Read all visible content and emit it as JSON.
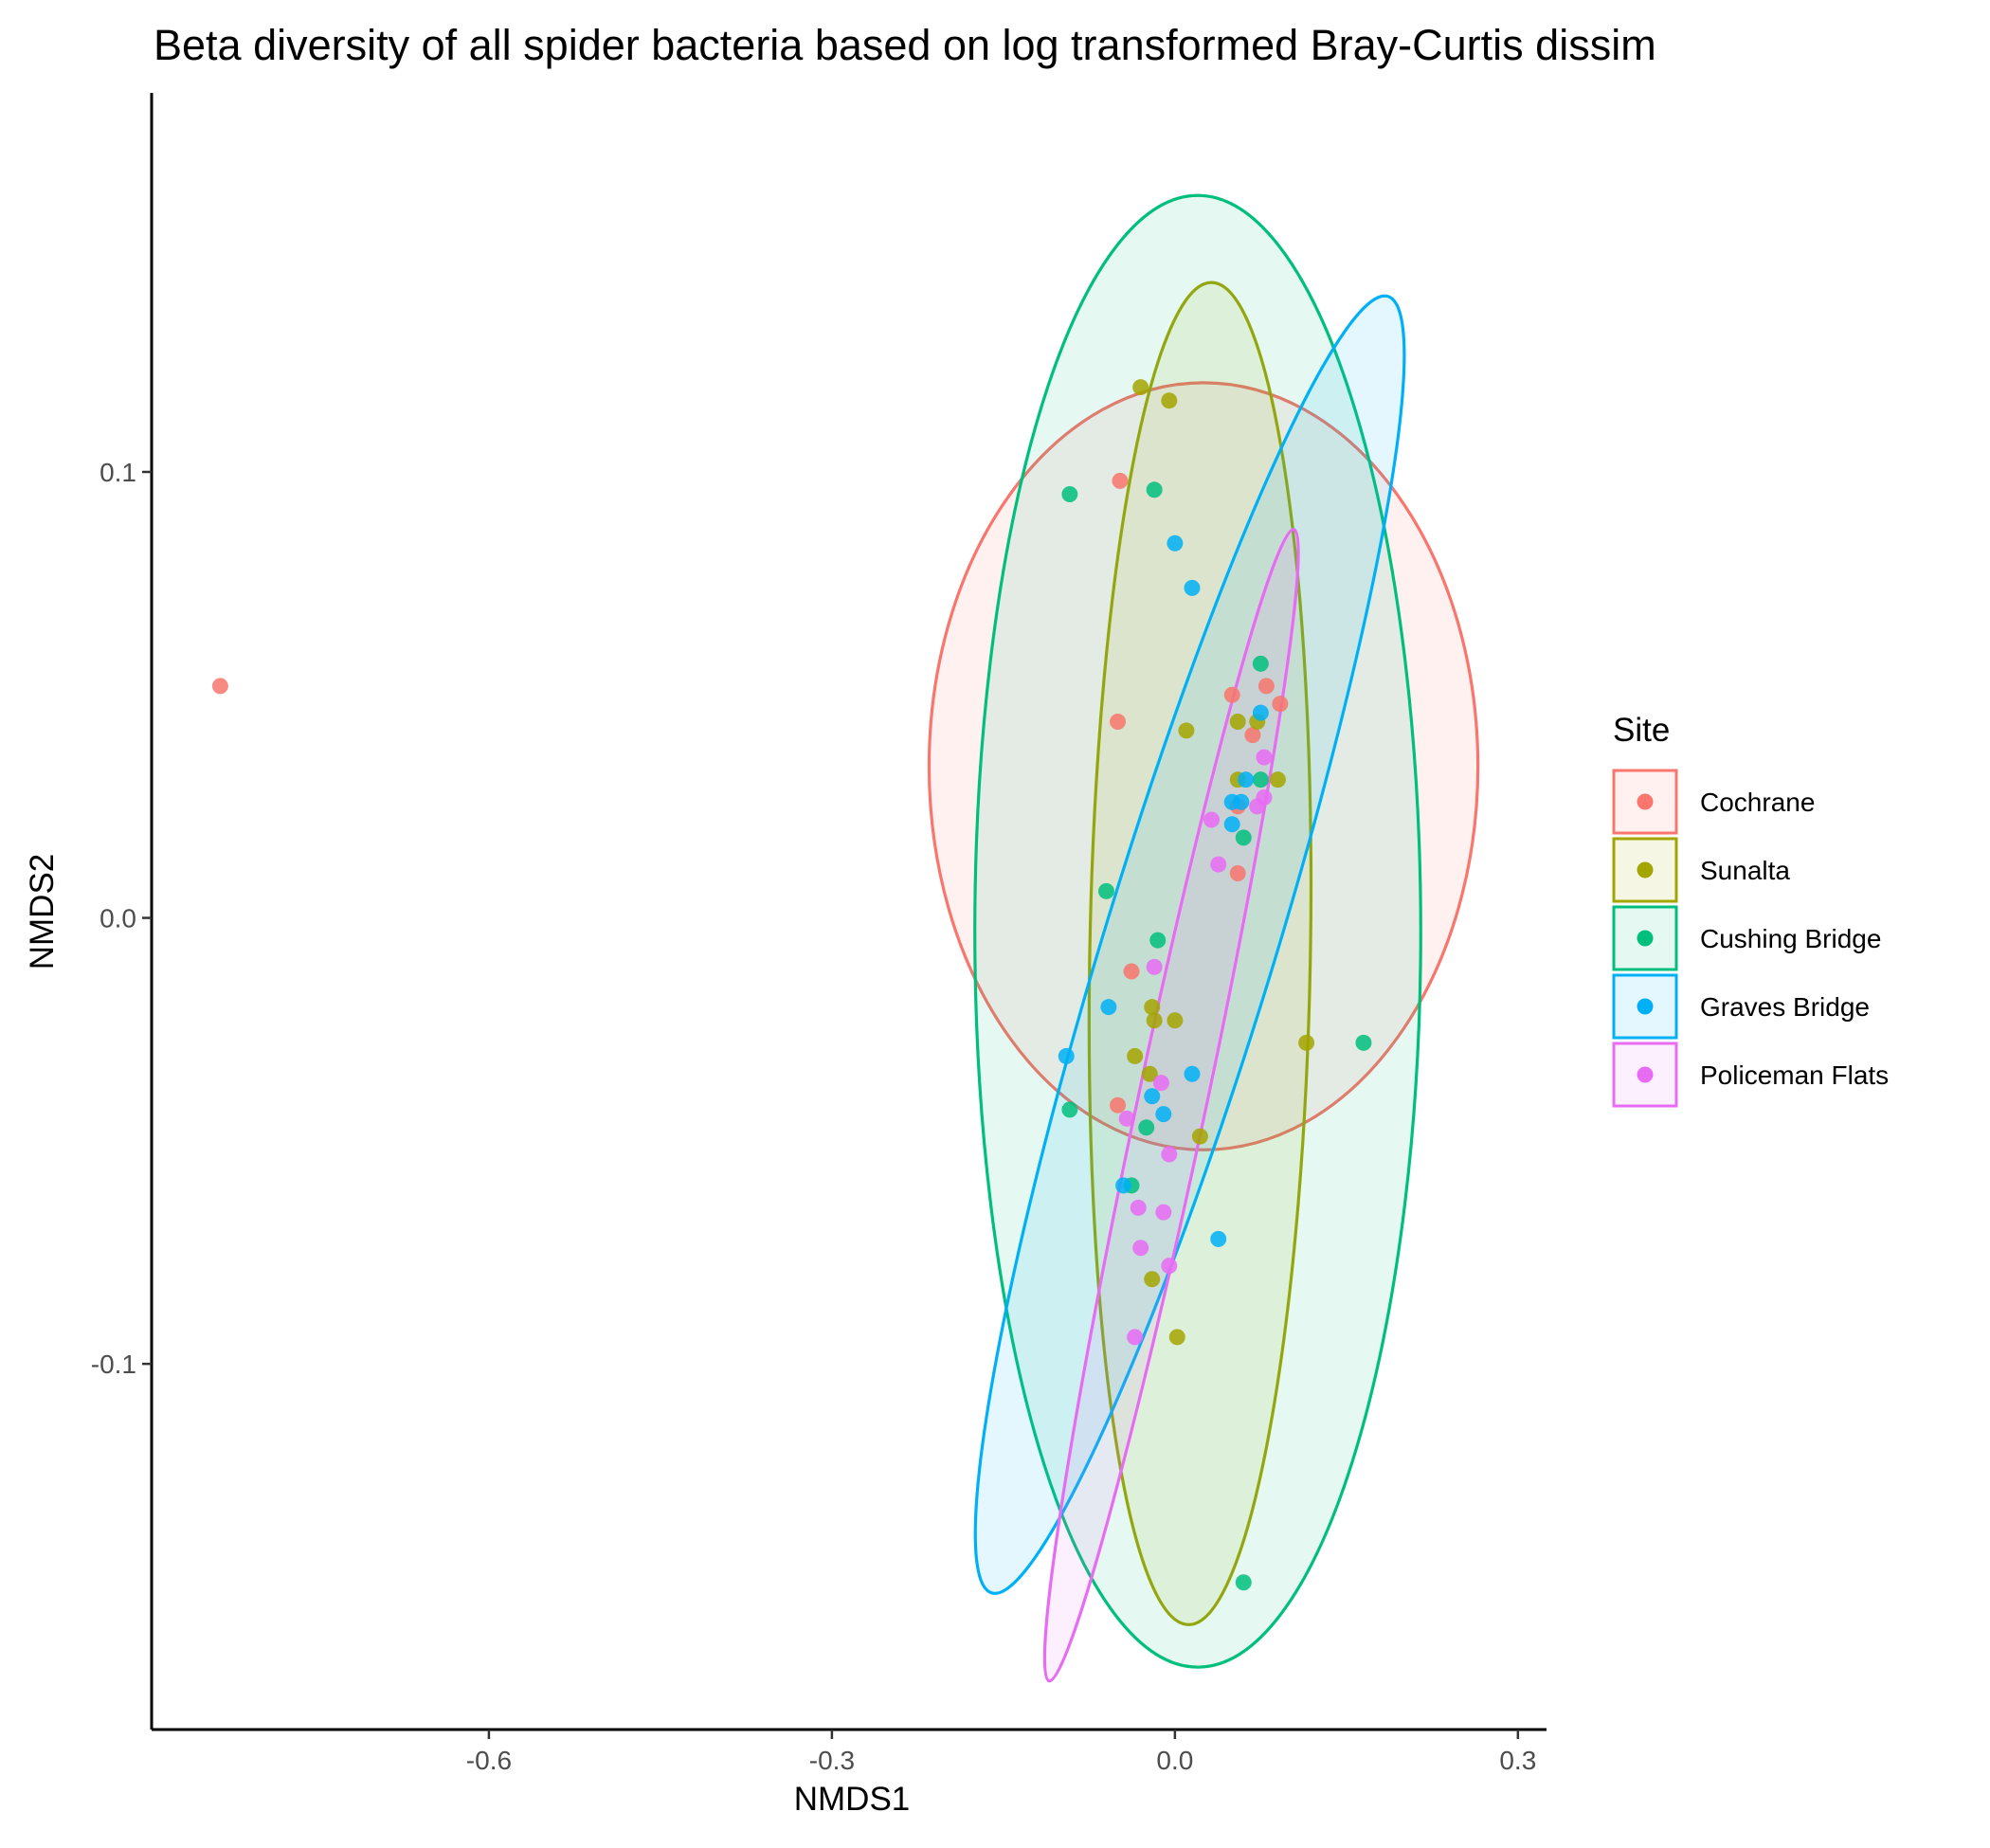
{
  "chart_data": {
    "type": "scatter",
    "title": "Beta diversity of all spider bacteria based on log transformed Bray-Curtis dissim",
    "xlabel": "NMDS1",
    "ylabel": "NMDS2",
    "xlim": [
      -0.895,
      0.325
    ],
    "ylim": [
      -0.182,
      0.185
    ],
    "xticks": [
      -0.6,
      -0.3,
      0.0,
      0.3
    ],
    "xtick_labels": [
      "-0.6",
      "-0.3",
      "0.0",
      "0.3"
    ],
    "yticks": [
      -0.1,
      0.0,
      0.1
    ],
    "ytick_labels": [
      "-0.1",
      "0.0",
      "0.1"
    ],
    "grid": false,
    "legend": {
      "title": "Site",
      "position": "right"
    },
    "series": [
      {
        "name": "Cochrane",
        "color": "#F8766D",
        "ellipse": {
          "center": [
            0.025,
            0.034
          ],
          "semi_axes": [
            0.24,
            0.086
          ],
          "angle": 0
        },
        "points": [
          [
            -0.835,
            0.052
          ],
          [
            -0.048,
            0.098
          ],
          [
            -0.05,
            0.044
          ],
          [
            0.05,
            0.05
          ],
          [
            0.08,
            0.052
          ],
          [
            0.092,
            0.048
          ],
          [
            0.068,
            0.041
          ],
          [
            0.055,
            0.025
          ],
          [
            0.055,
            0.01
          ],
          [
            -0.038,
            -0.012
          ],
          [
            -0.05,
            -0.042
          ]
        ]
      },
      {
        "name": "Sunalta",
        "color": "#A3A500",
        "ellipse": {
          "center": [
            0.022,
            -0.008
          ],
          "semi_axes": [
            0.0965,
            0.1505
          ],
          "angle": -1
        },
        "points": [
          [
            -0.03,
            0.119
          ],
          [
            -0.005,
            0.116
          ],
          [
            0.01,
            0.042
          ],
          [
            0.055,
            0.044
          ],
          [
            0.072,
            0.044
          ],
          [
            0.055,
            0.031
          ],
          [
            0.09,
            0.031
          ],
          [
            -0.02,
            -0.02
          ],
          [
            -0.018,
            -0.023
          ],
          [
            0.0,
            -0.023
          ],
          [
            -0.035,
            -0.031
          ],
          [
            -0.022,
            -0.035
          ],
          [
            0.115,
            -0.028
          ],
          [
            0.022,
            -0.049
          ],
          [
            -0.02,
            -0.081
          ],
          [
            0.002,
            -0.094
          ]
        ]
      },
      {
        "name": "Cushing Bridge",
        "color": "#00BF7D",
        "ellipse": {
          "center": [
            0.02,
            -0.003
          ],
          "semi_axes": [
            0.195,
            0.165
          ],
          "angle": 0
        },
        "points": [
          [
            -0.092,
            0.095
          ],
          [
            -0.018,
            0.096
          ],
          [
            0.075,
            0.057
          ],
          [
            0.075,
            0.031
          ],
          [
            0.06,
            0.018
          ],
          [
            -0.06,
            0.006
          ],
          [
            -0.015,
            -0.005
          ],
          [
            0.165,
            -0.028
          ],
          [
            -0.092,
            -0.043
          ],
          [
            -0.025,
            -0.047
          ],
          [
            -0.038,
            -0.06
          ],
          [
            0.06,
            -0.149
          ]
        ]
      },
      {
        "name": "Graves Bridge",
        "color": "#00B0F6",
        "ellipse": {
          "center": [
            0.013,
            -0.006
          ],
          "semi_axes": [
            0.152,
            0.075
          ],
          "angle": 73
        },
        "points": [
          [
            0.0,
            0.084
          ],
          [
            0.015,
            0.074
          ],
          [
            0.075,
            0.046
          ],
          [
            0.062,
            0.031
          ],
          [
            0.05,
            0.026
          ],
          [
            0.058,
            0.026
          ],
          [
            0.05,
            0.021
          ],
          [
            -0.058,
            -0.02
          ],
          [
            -0.095,
            -0.031
          ],
          [
            0.015,
            -0.035
          ],
          [
            -0.02,
            -0.04
          ],
          [
            -0.01,
            -0.044
          ],
          [
            -0.045,
            -0.06
          ],
          [
            0.038,
            -0.072
          ]
        ]
      },
      {
        "name": "Policeman Flats",
        "color": "#E76BF3",
        "ellipse": {
          "center": [
            -0.003,
            -0.042
          ],
          "semi_axes": [
            0.132,
            0.03
          ],
          "angle": 78
        },
        "points": [
          [
            0.078,
            0.036
          ],
          [
            0.078,
            0.027
          ],
          [
            0.072,
            0.025
          ],
          [
            0.032,
            0.022
          ],
          [
            0.038,
            0.012
          ],
          [
            -0.018,
            -0.011
          ],
          [
            -0.012,
            -0.037
          ],
          [
            -0.042,
            -0.045
          ],
          [
            -0.005,
            -0.053
          ],
          [
            -0.032,
            -0.065
          ],
          [
            -0.01,
            -0.066
          ],
          [
            -0.03,
            -0.074
          ],
          [
            -0.005,
            -0.078
          ],
          [
            -0.035,
            -0.094
          ]
        ]
      }
    ]
  }
}
